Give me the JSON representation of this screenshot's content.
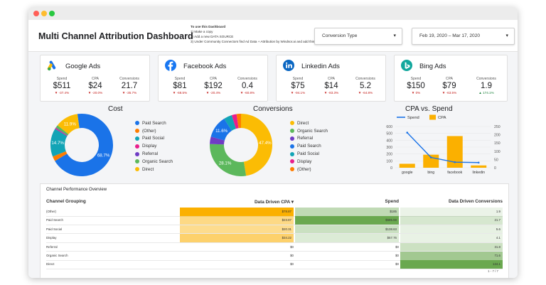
{
  "header": {
    "title": "Multi Channel Attribution Dashboard",
    "instructions": {
      "heading": "To use this Dashboard",
      "steps": [
        "1) Make a copy",
        "2) Add a new DATA SOURCE",
        "3) Under Community Connectors find Ad Data + Attribution by Windsor.ai and add this connector"
      ]
    },
    "conversion_type": {
      "label": "Conversion Type",
      "caret": "▾"
    },
    "date_range": {
      "label": "Feb 19, 2020 – Mar 17, 2020",
      "caret": "▾"
    }
  },
  "cards": [
    {
      "name": "Google Ads",
      "icon": "google-ads-icon",
      "metrics": [
        {
          "label": "Spend",
          "value": "$511",
          "delta": "-37.4%",
          "dir": "down"
        },
        {
          "label": "CPA",
          "value": "$24",
          "delta": "-20.0%",
          "dir": "down"
        },
        {
          "label": "Conversions",
          "value": "21.7",
          "delta": "-35.7%",
          "dir": "down"
        }
      ]
    },
    {
      "name": "Facebook Ads",
      "icon": "facebook-icon",
      "metrics": [
        {
          "label": "Spend",
          "value": "$81",
          "delta": "-68.5%",
          "dir": "down"
        },
        {
          "label": "CPA",
          "value": "$192",
          "delta": "-20.4%",
          "dir": "down"
        },
        {
          "label": "Conversions",
          "value": "0.4",
          "delta": "-60.8%",
          "dir": "down"
        }
      ]
    },
    {
      "name": "Linkedin Ads",
      "icon": "linkedin-icon",
      "metrics": [
        {
          "label": "Spend",
          "value": "$75",
          "delta": "-94.1%",
          "dir": "down"
        },
        {
          "label": "CPA",
          "value": "$14",
          "delta": "-83.3%",
          "dir": "down"
        },
        {
          "label": "Conversions",
          "value": "5.2",
          "delta": "-64.8%",
          "dir": "down"
        }
      ]
    },
    {
      "name": "Bing Ads",
      "icon": "bing-icon",
      "metrics": [
        {
          "label": "Spend",
          "value": "$150",
          "delta": "0%",
          "dir": "down"
        },
        {
          "label": "CPA",
          "value": "$79",
          "delta": "-63.5%",
          "dir": "down"
        },
        {
          "label": "Conversions",
          "value": "1.9",
          "delta": "174.1%",
          "dir": "up"
        }
      ]
    }
  ],
  "colors": {
    "paid_search": "#1a73e8",
    "other": "#ff7d00",
    "paid_social": "#12a4b6",
    "display": "#e91e8c",
    "referral": "#6f3cc4",
    "organic_search": "#5cb85c",
    "direct": "#fbbc04",
    "negative": "#c5221f",
    "positive": "#188038"
  },
  "chart_data": [
    {
      "type": "pie",
      "title": "Cost",
      "categories": [
        "Paid Search",
        "(Other)",
        "Paid Social",
        "Display",
        "Referral",
        "Organic Search",
        "Direct"
      ],
      "values": [
        68.7,
        2.5,
        14.7,
        0.5,
        0.3,
        1.4,
        11.9
      ],
      "slice_labels": [
        "68.7%",
        "",
        "14.7%",
        "",
        "",
        "",
        "11.9%"
      ],
      "legend": "right"
    },
    {
      "type": "pie",
      "title": "Conversions",
      "categories": [
        "Direct",
        "Organic Search",
        "Referral",
        "Paid Search",
        "Paid Social",
        "Display",
        "(Other)"
      ],
      "values": [
        47.4,
        28.1,
        3.8,
        11.6,
        4.3,
        2.5,
        2.3
      ],
      "slice_labels": [
        "47.4%",
        "28.1%",
        "",
        "11.6%",
        "",
        "",
        ""
      ],
      "legend": "right"
    },
    {
      "type": "bar",
      "title": "CPA vs. Spend",
      "categories": [
        "google",
        "bing",
        "facebook",
        "linkedin"
      ],
      "series": [
        {
          "name": "Spend",
          "kind": "line",
          "values": [
            511,
            150,
            81,
            75
          ]
        },
        {
          "name": "CPA",
          "kind": "bar",
          "values": [
            24,
            79,
            192,
            14
          ]
        }
      ],
      "y_left_ticks": [
        "600",
        "500",
        "400",
        "300",
        "200",
        "100",
        "0"
      ],
      "y_right_ticks": [
        "250",
        "200",
        "150",
        "100",
        "50",
        "0"
      ],
      "y_left_lim": [
        0,
        600
      ],
      "y_right_lim": [
        0,
        250
      ],
      "legend": "top-left"
    },
    {
      "type": "table",
      "title": "Channel Performance Overview",
      "columns": [
        "Channel Grouping",
        "Data Driven CPA ▾",
        "Spend",
        "Data Driven Conversions"
      ],
      "rows": [
        [
          "(Other)",
          "$78.87",
          "$185",
          "1.9"
        ],
        [
          "Paid Search",
          "$23.87",
          "$585.59",
          "21.7"
        ],
        [
          "Paid Social",
          "$20.31",
          "$138.63",
          "5.6"
        ],
        [
          "Display",
          "$34.22",
          "$57.76",
          "4.1"
        ],
        [
          "Referral",
          "$0",
          "$0",
          "31.8"
        ],
        [
          "Organic Search",
          "$0",
          "$0",
          "71.6"
        ],
        [
          "Direct",
          "$0",
          "$0",
          "124.1"
        ]
      ],
      "pager": "1 - 7 / 7"
    }
  ]
}
